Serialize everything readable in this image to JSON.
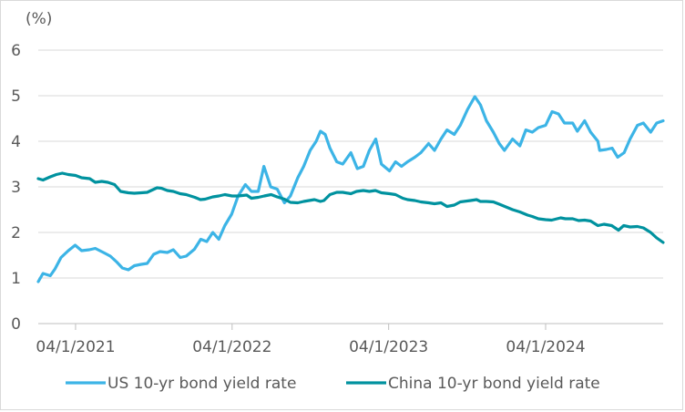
{
  "chart_data": {
    "type": "line",
    "title": "",
    "unit_label": "(%)",
    "xlabel": "",
    "ylabel": "",
    "ylim": [
      0,
      6
    ],
    "yticks": [
      "0",
      "1",
      "2",
      "3",
      "4",
      "5",
      "6"
    ],
    "xlim": [
      "2021-01-04",
      "2024-12-31"
    ],
    "xticks": [
      "04/1/2021",
      "04/1/2022",
      "04/1/2023",
      "04/1/2024"
    ],
    "grid": "horizontal",
    "legend_position": "bottom",
    "series": [
      {
        "name": "US 10-yr bond yield rate",
        "color": "#3cb4e6",
        "points": [
          [
            "2021-01-04",
            0.92
          ],
          [
            "2021-01-15",
            1.1
          ],
          [
            "2021-02-01",
            1.05
          ],
          [
            "2021-02-12",
            1.2
          ],
          [
            "2021-02-26",
            1.45
          ],
          [
            "2021-03-15",
            1.6
          ],
          [
            "2021-03-31",
            1.72
          ],
          [
            "2021-04-15",
            1.6
          ],
          [
            "2021-05-03",
            1.62
          ],
          [
            "2021-05-17",
            1.65
          ],
          [
            "2021-06-07",
            1.55
          ],
          [
            "2021-06-21",
            1.48
          ],
          [
            "2021-07-06",
            1.35
          ],
          [
            "2021-07-19",
            1.22
          ],
          [
            "2021-08-02",
            1.18
          ],
          [
            "2021-08-16",
            1.27
          ],
          [
            "2021-09-01",
            1.3
          ],
          [
            "2021-09-15",
            1.32
          ],
          [
            "2021-09-30",
            1.52
          ],
          [
            "2021-10-15",
            1.58
          ],
          [
            "2021-11-01",
            1.56
          ],
          [
            "2021-11-15",
            1.62
          ],
          [
            "2021-12-01",
            1.45
          ],
          [
            "2021-12-15",
            1.48
          ],
          [
            "2022-01-03",
            1.63
          ],
          [
            "2022-01-18",
            1.85
          ],
          [
            "2022-02-01",
            1.8
          ],
          [
            "2022-02-15",
            2.0
          ],
          [
            "2022-03-01",
            1.85
          ],
          [
            "2022-03-15",
            2.15
          ],
          [
            "2022-03-31",
            2.4
          ],
          [
            "2022-04-15",
            2.8
          ],
          [
            "2022-05-02",
            3.05
          ],
          [
            "2022-05-16",
            2.9
          ],
          [
            "2022-06-01",
            2.9
          ],
          [
            "2022-06-14",
            3.45
          ],
          [
            "2022-06-30",
            3.0
          ],
          [
            "2022-07-15",
            2.95
          ],
          [
            "2022-08-01",
            2.65
          ],
          [
            "2022-08-15",
            2.8
          ],
          [
            "2022-09-01",
            3.2
          ],
          [
            "2022-09-15",
            3.45
          ],
          [
            "2022-09-30",
            3.8
          ],
          [
            "2022-10-14",
            4.0
          ],
          [
            "2022-10-24",
            4.22
          ],
          [
            "2022-11-04",
            4.15
          ],
          [
            "2022-11-15",
            3.85
          ],
          [
            "2022-12-01",
            3.55
          ],
          [
            "2022-12-15",
            3.5
          ],
          [
            "2023-01-03",
            3.75
          ],
          [
            "2023-01-18",
            3.4
          ],
          [
            "2023-02-01",
            3.45
          ],
          [
            "2023-02-15",
            3.8
          ],
          [
            "2023-03-02",
            4.05
          ],
          [
            "2023-03-15",
            3.5
          ],
          [
            "2023-04-03",
            3.35
          ],
          [
            "2023-04-17",
            3.55
          ],
          [
            "2023-05-01",
            3.45
          ],
          [
            "2023-05-15",
            3.55
          ],
          [
            "2023-06-01",
            3.65
          ],
          [
            "2023-06-15",
            3.75
          ],
          [
            "2023-07-03",
            3.95
          ],
          [
            "2023-07-17",
            3.8
          ],
          [
            "2023-08-01",
            4.05
          ],
          [
            "2023-08-15",
            4.25
          ],
          [
            "2023-09-01",
            4.15
          ],
          [
            "2023-09-15",
            4.35
          ],
          [
            "2023-10-02",
            4.7
          ],
          [
            "2023-10-19",
            4.98
          ],
          [
            "2023-11-01",
            4.8
          ],
          [
            "2023-11-15",
            4.45
          ],
          [
            "2023-12-01",
            4.2
          ],
          [
            "2023-12-15",
            3.95
          ],
          [
            "2023-12-27",
            3.8
          ],
          [
            "2024-01-15",
            4.05
          ],
          [
            "2024-02-01",
            3.9
          ],
          [
            "2024-02-15",
            4.25
          ],
          [
            "2024-03-01",
            4.2
          ],
          [
            "2024-03-15",
            4.3
          ],
          [
            "2024-04-01",
            4.35
          ],
          [
            "2024-04-16",
            4.65
          ],
          [
            "2024-05-01",
            4.6
          ],
          [
            "2024-05-15",
            4.4
          ],
          [
            "2024-06-03",
            4.4
          ],
          [
            "2024-06-14",
            4.22
          ],
          [
            "2024-07-01",
            4.45
          ],
          [
            "2024-07-15",
            4.2
          ],
          [
            "2024-08-01",
            4.0
          ],
          [
            "2024-08-05",
            3.8
          ],
          [
            "2024-08-20",
            3.82
          ],
          [
            "2024-09-03",
            3.85
          ],
          [
            "2024-09-16",
            3.65
          ],
          [
            "2024-10-01",
            3.75
          ],
          [
            "2024-10-15",
            4.05
          ],
          [
            "2024-11-01",
            4.35
          ],
          [
            "2024-11-15",
            4.4
          ],
          [
            "2024-12-02",
            4.2
          ],
          [
            "2024-12-16",
            4.4
          ],
          [
            "2024-12-31",
            4.45
          ]
        ]
      },
      {
        "name": "China 10-yr bond yield rate",
        "color": "#00929f",
        "points": [
          [
            "2021-01-04",
            3.18
          ],
          [
            "2021-01-15",
            3.15
          ],
          [
            "2021-02-01",
            3.22
          ],
          [
            "2021-02-15",
            3.27
          ],
          [
            "2021-03-01",
            3.3
          ],
          [
            "2021-03-15",
            3.27
          ],
          [
            "2021-04-01",
            3.25
          ],
          [
            "2021-04-15",
            3.2
          ],
          [
            "2021-05-04",
            3.18
          ],
          [
            "2021-05-17",
            3.1
          ],
          [
            "2021-06-01",
            3.12
          ],
          [
            "2021-06-15",
            3.1
          ],
          [
            "2021-07-01",
            3.05
          ],
          [
            "2021-07-15",
            2.9
          ],
          [
            "2021-08-02",
            2.87
          ],
          [
            "2021-08-16",
            2.86
          ],
          [
            "2021-09-01",
            2.87
          ],
          [
            "2021-09-15",
            2.88
          ],
          [
            "2021-10-08",
            2.98
          ],
          [
            "2021-10-18",
            2.97
          ],
          [
            "2021-11-01",
            2.92
          ],
          [
            "2021-11-15",
            2.9
          ],
          [
            "2021-12-01",
            2.85
          ],
          [
            "2021-12-15",
            2.83
          ],
          [
            "2022-01-04",
            2.77
          ],
          [
            "2022-01-17",
            2.72
          ],
          [
            "2022-01-28",
            2.73
          ],
          [
            "2022-02-15",
            2.78
          ],
          [
            "2022-03-01",
            2.8
          ],
          [
            "2022-03-15",
            2.83
          ],
          [
            "2022-04-01",
            2.8
          ],
          [
            "2022-04-15",
            2.8
          ],
          [
            "2022-05-05",
            2.82
          ],
          [
            "2022-05-16",
            2.75
          ],
          [
            "2022-06-01",
            2.77
          ],
          [
            "2022-06-15",
            2.8
          ],
          [
            "2022-07-01",
            2.83
          ],
          [
            "2022-07-15",
            2.78
          ],
          [
            "2022-08-01",
            2.73
          ],
          [
            "2022-08-15",
            2.66
          ],
          [
            "2022-09-01",
            2.65
          ],
          [
            "2022-09-15",
            2.68
          ],
          [
            "2022-10-10",
            2.72
          ],
          [
            "2022-10-24",
            2.68
          ],
          [
            "2022-11-01",
            2.7
          ],
          [
            "2022-11-15",
            2.83
          ],
          [
            "2022-12-01",
            2.88
          ],
          [
            "2022-12-15",
            2.88
          ],
          [
            "2023-01-03",
            2.85
          ],
          [
            "2023-01-16",
            2.9
          ],
          [
            "2023-02-01",
            2.92
          ],
          [
            "2023-02-15",
            2.9
          ],
          [
            "2023-03-01",
            2.92
          ],
          [
            "2023-03-15",
            2.87
          ],
          [
            "2023-04-03",
            2.85
          ],
          [
            "2023-04-17",
            2.83
          ],
          [
            "2023-05-04",
            2.75
          ],
          [
            "2023-05-15",
            2.72
          ],
          [
            "2023-06-01",
            2.7
          ],
          [
            "2023-06-15",
            2.67
          ],
          [
            "2023-07-03",
            2.65
          ],
          [
            "2023-07-17",
            2.63
          ],
          [
            "2023-08-01",
            2.65
          ],
          [
            "2023-08-15",
            2.57
          ],
          [
            "2023-09-01",
            2.6
          ],
          [
            "2023-09-15",
            2.67
          ],
          [
            "2023-10-09",
            2.7
          ],
          [
            "2023-10-23",
            2.72
          ],
          [
            "2023-11-01",
            2.68
          ],
          [
            "2023-11-15",
            2.68
          ],
          [
            "2023-12-01",
            2.67
          ],
          [
            "2023-12-15",
            2.62
          ],
          [
            "2024-01-02",
            2.55
          ],
          [
            "2024-01-15",
            2.5
          ],
          [
            "2024-02-01",
            2.45
          ],
          [
            "2024-02-19",
            2.38
          ],
          [
            "2024-03-01",
            2.35
          ],
          [
            "2024-03-15",
            2.3
          ],
          [
            "2024-04-01",
            2.28
          ],
          [
            "2024-04-15",
            2.27
          ],
          [
            "2024-05-06",
            2.32
          ],
          [
            "2024-05-17",
            2.3
          ],
          [
            "2024-06-03",
            2.3
          ],
          [
            "2024-06-17",
            2.26
          ],
          [
            "2024-07-01",
            2.27
          ],
          [
            "2024-07-15",
            2.25
          ],
          [
            "2024-08-01",
            2.15
          ],
          [
            "2024-08-15",
            2.18
          ],
          [
            "2024-09-02",
            2.15
          ],
          [
            "2024-09-18",
            2.05
          ],
          [
            "2024-09-30",
            2.15
          ],
          [
            "2024-10-15",
            2.12
          ],
          [
            "2024-11-01",
            2.13
          ],
          [
            "2024-11-15",
            2.1
          ],
          [
            "2024-12-02",
            2.0
          ],
          [
            "2024-12-16",
            1.88
          ],
          [
            "2024-12-31",
            1.78
          ]
        ]
      }
    ]
  }
}
